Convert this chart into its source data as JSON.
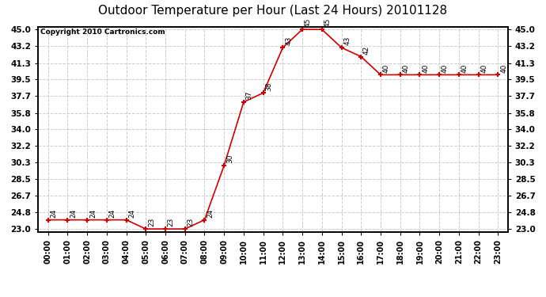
{
  "title": "Outdoor Temperature per Hour (Last 24 Hours) 20101128",
  "copyright": "Copyright 2010 Cartronics.com",
  "hours": [
    "00:00",
    "01:00",
    "02:00",
    "03:00",
    "04:00",
    "05:00",
    "06:00",
    "07:00",
    "08:00",
    "09:00",
    "10:00",
    "11:00",
    "12:00",
    "13:00",
    "14:00",
    "15:00",
    "16:00",
    "17:00",
    "18:00",
    "19:00",
    "20:00",
    "21:00",
    "22:00",
    "23:00"
  ],
  "temperatures": [
    24,
    24,
    24,
    24,
    24,
    23,
    23,
    23,
    24,
    30,
    37,
    38,
    43,
    45,
    45,
    43,
    42,
    40,
    40,
    40,
    40,
    40,
    40,
    40
  ],
  "ylim_min": 23.0,
  "ylim_max": 45.0,
  "yticks": [
    23.0,
    24.8,
    26.7,
    28.5,
    30.3,
    32.2,
    34.0,
    35.8,
    37.7,
    39.5,
    41.3,
    43.2,
    45.0
  ],
  "line_color": "#cc0000",
  "marker_color": "#cc0000",
  "bg_color": "#ffffff",
  "plot_bg_color": "#ffffff",
  "grid_color": "#cccccc",
  "title_fontsize": 11,
  "label_fontsize": 6.5,
  "tick_fontsize": 7.5,
  "copyright_fontsize": 6.5
}
